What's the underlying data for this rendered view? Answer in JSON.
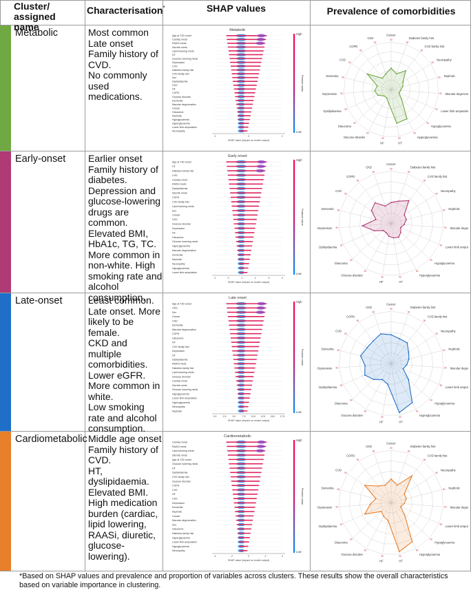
{
  "header": {
    "col1": "Cluster/ assigned name",
    "col2": "Characterisation",
    "col2_mark": "*",
    "col3": "SHAP values",
    "col4": "Prevalence of comorbidities"
  },
  "shap_common": {
    "xlabel": "SHAP value (impact on model output)",
    "legend_high": "High",
    "legend_low": "Low",
    "legend_title": "Feature value"
  },
  "radar_axes": [
    "Cancer",
    "Diabetes family hist",
    "CVD family hist",
    "Neuropathy",
    "Nephotic",
    "Macular degeneration",
    "Lower limb amputation",
    "Hypoglycaemia",
    "Hyperglycaemia",
    "HT",
    "HF",
    "Glucose disorder",
    "Glaucoma",
    "Dyslipidaemia",
    "Depression",
    "Dementia",
    "CVD",
    "COPD",
    "CKD"
  ],
  "radar_ring_label": "90",
  "clusters": [
    {
      "name": "Metabolic",
      "color": "#70a843",
      "description": "Most common\nLate onset\nFamily history of CVD.\nNo commonly used medications.",
      "shap_title": "Metabolic",
      "shap_features": [
        "Age at T2D onset",
        "Cardiac meds",
        "RAASi meds",
        "Diuretic meds",
        "Lipid lowering meds",
        "HT",
        "Glucose lowering meds",
        "Depression",
        "CVD",
        "Diabetes family hist",
        "CVD family hist",
        "Sex",
        "Dyslipidaemia",
        "CKD",
        "HF",
        "COPD",
        "Glucose disorder",
        "Dementia",
        "Macular degeneration",
        "Cancer",
        "Glaucoma",
        "Nephotic",
        "Hypoglycaemia",
        "Hyperglycaemia",
        "Lower limb amputation",
        "Neuropathy"
      ],
      "shap_ticks": [
        "-2",
        "0",
        "2"
      ],
      "radar_values": [
        0.45,
        0.35,
        0.5,
        0.3,
        0.25,
        0.2,
        0.18,
        0.3,
        0.7,
        0.72,
        0.3,
        0.2,
        0.2,
        0.3,
        0.35,
        0.3,
        0.6,
        0.3,
        0.35
      ]
    },
    {
      "name": "Early-onset",
      "color": "#b03a73",
      "description": "Earlier onset\nFamily history of diabetes.\nDepression and glucose-lowering drugs are common.\nElevated BMI, HbA1c, TG, TC.\nMore common in non-white. High smoking rate and alcohol consumption.",
      "shap_title": "Early onset",
      "shap_features": [
        "Age at T2D onset",
        "HT",
        "Diabetes family hist",
        "CVD",
        "Cardiac meds",
        "RAASi meds",
        "Dyslipidaemia",
        "Diuretic meds",
        "COPD",
        "CVD family hist",
        "Lipid lowering meds",
        "Sex",
        "Cancer",
        "CKD",
        "Glucose disorder",
        "Depression",
        "HF",
        "Glaucoma",
        "Glucose lowering meds",
        "Hyperglycaemia",
        "Macular degeneration",
        "Dementia",
        "Nephotic",
        "Neuropathy",
        "Hypoglycaemia",
        "Lower limb amputation"
      ],
      "shap_ticks": [
        "-1",
        "0",
        "1",
        "2",
        "3",
        "4"
      ],
      "radar_values": [
        0.4,
        0.45,
        0.55,
        0.3,
        0.3,
        0.25,
        0.2,
        0.25,
        0.3,
        0.28,
        0.25,
        0.2,
        0.2,
        0.35,
        0.55,
        0.3,
        0.45,
        0.5,
        0.35
      ]
    },
    {
      "name": "Late-onset",
      "color": "#1f6fc9",
      "description": "Least common.\nLate onset. More likely to be female.\nCKD and multiple comorbidities.\nLower eGFR.\nMore common in white.\nLow smoking rate and alcohol consumption.",
      "shap_title": "Late onset",
      "shap_features": [
        "Age at T2D onset",
        "CKD",
        "Sex",
        "Cancer",
        "CHD",
        "Dementia",
        "Macular degeneration",
        "COPD",
        "Glaucoma",
        "HF",
        "CVD family hist",
        "Depression",
        "HT",
        "Dyslipidaemia",
        "RAASi meds",
        "Diabetes family hist",
        "Lipid lowering meds",
        "Glucose disorder",
        "Cardiac meds",
        "Diuretic meds",
        "Glucose lowering meds",
        "Hypoglycaemia",
        "Lower limb amputation",
        "Hyperglycaemia",
        "Neuropathy",
        "Nephotic"
      ],
      "shap_ticks": [
        "0.0",
        "2.5",
        "5.0",
        "7.5",
        "10.0",
        "12.5",
        "15.0",
        "17.5"
      ],
      "radar_values": [
        0.55,
        0.5,
        0.5,
        0.4,
        0.35,
        0.3,
        0.25,
        0.45,
        0.85,
        0.95,
        0.4,
        0.35,
        0.45,
        0.55,
        0.5,
        0.6,
        0.55,
        0.55,
        0.6
      ]
    },
    {
      "name": "Cardiometabolic",
      "color": "#e87f2a",
      "description": "Middle age onset\nFamily history of CVD.\nHT, dyslipidaemia.\nElevated BMI.\nHigh medication burden (cardiac, lipid lowering, RAASi, diuretic, glucose-lowering).",
      "shap_title": "Cardiometabolic",
      "shap_features": [
        "Cardiac meds",
        "RAASi meds",
        "Lipid lowering meds",
        "Diuretic meds",
        "Age at T2D onset",
        "Glucose lowering meds",
        "HT",
        "Dyslipidaemia",
        "CVD family hist",
        "Glucose disorder",
        "COPD",
        "CVD",
        "HF",
        "CKD",
        "Depression",
        "Dementia",
        "Nephotic",
        "Cancer",
        "Macular degeneration",
        "Sex",
        "Glaucoma",
        "Diabetes family hist",
        "Hyperglycaemia",
        "Lower limb amputation",
        "Hypoglycaemia",
        "Neuropathy"
      ],
      "shap_ticks": [
        "-4",
        "-2",
        "0",
        "2",
        "4"
      ],
      "radar_values": [
        0.45,
        0.35,
        0.65,
        0.3,
        0.3,
        0.25,
        0.2,
        0.35,
        0.85,
        0.95,
        0.35,
        0.3,
        0.25,
        0.55,
        0.4,
        0.3,
        0.6,
        0.4,
        0.35
      ]
    }
  ],
  "footnote": "*Based on SHAP values and prevalence and proportion of variables across clusters. These results show the overall characteristics based on variable importance in clustering."
}
